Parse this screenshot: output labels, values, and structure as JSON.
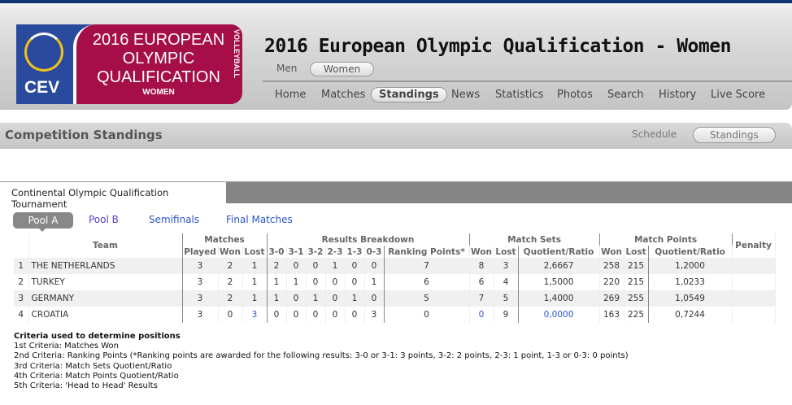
{
  "header": {
    "logo": {
      "line1": "2016 EUROPEAN",
      "line2": "OLYMPIC",
      "line3": "QUALIFICATION",
      "line4": "WOMEN",
      "side": "VOLLEYBALL",
      "brand": "CEV"
    },
    "title": "2016 European Olympic Qualification - Women",
    "gender": [
      "Men",
      "Women"
    ],
    "gender_active": "Women",
    "nav": [
      "Home",
      "Matches",
      "Standings",
      "News",
      "Statistics",
      "Photos",
      "Search",
      "History",
      "Live Score"
    ],
    "nav_active": "Standings"
  },
  "subheader": {
    "title": "Competition Standings",
    "links": [
      "Schedule",
      "Standings"
    ],
    "active": "Standings"
  },
  "tab": "Continental Olympic Qualification Tournament",
  "pools": [
    "Pool A",
    "Pool B",
    "Semifinals",
    "Final Matches"
  ],
  "pool_active": "Pool A",
  "table": {
    "group_headers": {
      "team": "Team",
      "matches": "Matches",
      "breakdown": "Results Breakdown",
      "sets": "Match Sets",
      "points": "Match Points",
      "penalty": "Penalty"
    },
    "sub_headers": [
      "Played",
      "Won",
      "Lost",
      "3-0",
      "3-1",
      "3-2",
      "2-3",
      "1-3",
      "0-3",
      "Ranking Points*",
      "Won",
      "Lost",
      "Quotient/Ratio",
      "Won",
      "Lost",
      "Quotient/Ratio"
    ],
    "rows": [
      {
        "rank": "1",
        "team": "THE NETHERLANDS",
        "values": [
          "3",
          "2",
          "1",
          "2",
          "0",
          "0",
          "1",
          "0",
          "0",
          "7",
          "8",
          "3",
          "2,6667",
          "258",
          "215",
          "1,2000"
        ],
        "penalty": ""
      },
      {
        "rank": "2",
        "team": "TURKEY",
        "values": [
          "3",
          "2",
          "1",
          "1",
          "1",
          "0",
          "0",
          "0",
          "1",
          "6",
          "6",
          "4",
          "1,5000",
          "220",
          "215",
          "1,0233"
        ],
        "penalty": ""
      },
      {
        "rank": "3",
        "team": "GERMANY",
        "values": [
          "3",
          "2",
          "1",
          "1",
          "0",
          "1",
          "0",
          "1",
          "0",
          "5",
          "7",
          "5",
          "1,4000",
          "269",
          "255",
          "1,0549"
        ],
        "penalty": ""
      },
      {
        "rank": "4",
        "team": "CROATIA",
        "values": [
          "3",
          "0",
          "3",
          "0",
          "0",
          "0",
          "0",
          "0",
          "3",
          "0",
          "0",
          "9",
          "0,0000",
          "163",
          "225",
          "0,7244"
        ],
        "penalty": ""
      }
    ]
  },
  "criteria": {
    "title": "Criteria used to determine positions",
    "items": [
      "1st Criteria: Matches Won",
      "2nd Criteria: Ranking Points (*Ranking points are awarded for the following results: 3-0 or 3-1: 3 points, 3-2: 2 points, 2-3: 1 point, 1-3 or 0-3: 0 points)",
      "3rd Criteria: Match Sets Quotient/Ratio",
      "4th Criteria: Match Points Quotient/Ratio",
      "5th Criteria: 'Head to Head' Results"
    ]
  }
}
